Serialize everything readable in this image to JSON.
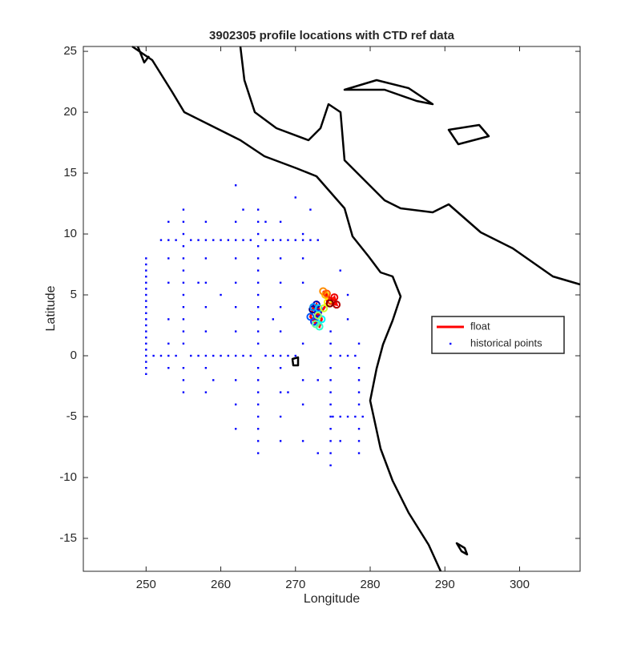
{
  "chart_data": {
    "type": "scatter",
    "title": "3902305 profile locations with CTD ref data",
    "x_label": "Longitude",
    "y_label": "Latitude",
    "xlim": [
      241.6,
      308.1
    ],
    "ylim": [
      -17.7,
      25.4
    ],
    "xticks": [
      250,
      260,
      270,
      280,
      290,
      300
    ],
    "yticks": [
      -15,
      -10,
      -5,
      0,
      5,
      10,
      15,
      20,
      25
    ],
    "legend": "right",
    "series": [
      {
        "name": "float",
        "color": "#ff0000",
        "style": "line",
        "x": [
          272.3,
          272.8,
          273.0,
          272.5,
          272.0,
          272.4,
          273.1,
          273.5,
          273.2,
          272.7,
          273.0,
          273.8,
          274.3,
          274.0,
          273.7,
          274.2,
          274.8,
          275.2,
          275.5,
          274.6
        ],
        "values": [
          3.8,
          4.2,
          3.5,
          2.8,
          3.2,
          4.0,
          3.9,
          3.0,
          2.4,
          2.6,
          3.3,
          3.9,
          4.4,
          5.0,
          5.3,
          5.1,
          4.5,
          4.8,
          4.2,
          4.3
        ]
      },
      {
        "name": "historical points",
        "color": "#0000ff",
        "style": "points",
        "x": [
          250,
          250,
          250,
          250,
          250,
          250,
          250,
          250,
          250,
          250,
          250,
          250,
          250,
          250,
          250,
          250,
          250,
          250,
          250,
          250,
          251,
          252,
          253,
          254,
          256,
          257,
          258,
          259,
          260,
          261,
          262,
          263,
          264,
          266,
          267,
          268,
          269,
          270,
          276,
          277,
          278,
          255,
          255,
          255,
          255,
          255,
          255,
          255,
          255,
          255,
          255,
          255,
          255,
          255,
          255,
          255,
          252,
          253,
          254,
          256,
          257,
          258,
          259,
          260,
          261,
          262,
          263,
          264,
          266,
          267,
          268,
          269,
          270,
          271,
          272,
          273,
          265,
          265,
          265,
          265,
          265,
          265,
          265,
          265,
          265,
          265,
          265,
          265,
          265,
          265,
          265,
          265,
          265,
          265,
          265,
          265,
          274.7,
          274.7,
          274.7,
          274.7,
          274.7,
          274.7,
          274.7,
          274.7,
          274.7,
          274.7,
          274.7,
          274.7,
          275,
          276,
          277,
          278,
          279,
          278.5,
          278.5,
          278.5,
          278.5,
          278.5,
          278.5,
          278.5,
          278.5,
          262,
          262,
          262,
          262,
          262,
          262,
          262,
          262,
          262,
          268,
          268,
          268,
          268,
          268,
          268,
          268,
          268,
          268,
          271,
          271,
          271,
          271,
          271,
          271,
          271,
          258,
          258,
          258,
          258,
          258,
          258,
          258,
          253,
          253,
          253,
          253,
          253,
          253,
          276,
          277,
          277,
          272,
          270,
          263,
          266,
          260,
          257,
          273,
          276,
          269,
          273,
          267,
          259
        ],
        "values": [
          -1.5,
          -1,
          -0.5,
          0,
          0.5,
          1,
          1.5,
          2,
          2.5,
          3,
          3.5,
          4,
          4.5,
          5,
          5.5,
          6,
          6.5,
          7,
          7.5,
          8,
          0,
          0,
          0,
          0,
          0,
          0,
          0,
          0,
          0,
          0,
          0,
          0,
          0,
          0,
          0,
          0,
          0,
          0,
          0,
          0,
          0,
          -3,
          -2,
          -1,
          1,
          2,
          3,
          4,
          5,
          6,
          7,
          8,
          9,
          10,
          11,
          12,
          9.5,
          9.5,
          9.5,
          9.5,
          9.5,
          9.5,
          9.5,
          9.5,
          9.5,
          9.5,
          9.5,
          9.5,
          9.5,
          9.5,
          9.5,
          9.5,
          9.5,
          9.5,
          9.5,
          9.5,
          -8,
          -7,
          -6,
          -5,
          -4,
          -3,
          -2,
          -1,
          1,
          2,
          3,
          4,
          5,
          6,
          7,
          8,
          9,
          10,
          11,
          12,
          -9,
          -8,
          -7,
          -6,
          -5,
          -4,
          -3,
          -2,
          -1,
          0,
          1,
          2,
          -5,
          -5,
          -5,
          -5,
          -5,
          -8,
          -7,
          -6,
          -4,
          -3,
          -2,
          -1,
          1,
          -6,
          -4,
          -2,
          2,
          4,
          6,
          8,
          11,
          14,
          -7,
          -5,
          -3,
          -1,
          2,
          4,
          6,
          8,
          11,
          -7,
          -4,
          -2,
          1,
          6,
          8,
          10,
          -3,
          -1,
          2,
          4,
          6,
          8,
          11,
          -1,
          1,
          3,
          6,
          8,
          11,
          7,
          3,
          5,
          12,
          13,
          12,
          11,
          5,
          6,
          -8,
          -7,
          -3,
          -2,
          3,
          -2
        ]
      }
    ]
  }
}
